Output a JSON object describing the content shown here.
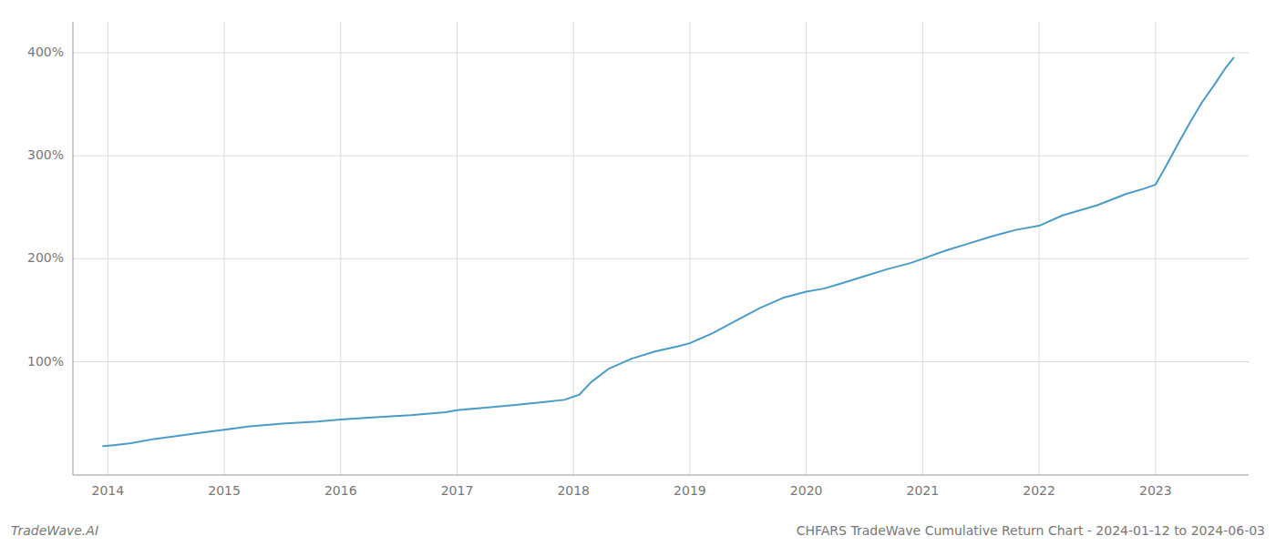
{
  "chart_data": {
    "type": "line",
    "title": "CHFARS TradeWave Cumulative Return Chart - 2024-01-12 to 2024-06-03",
    "annotations": [
      "TradeWave.AI"
    ],
    "color": "#4a9cc7",
    "x": [
      2013.96,
      2014.05,
      2014.2,
      2014.4,
      2014.6,
      2014.8,
      2015.0,
      2015.2,
      2015.5,
      2015.8,
      2016.0,
      2016.3,
      2016.6,
      2016.9,
      2017.0,
      2017.2,
      2017.5,
      2017.75,
      2017.92,
      2018.05,
      2018.15,
      2018.3,
      2018.5,
      2018.7,
      2018.9,
      2019.0,
      2019.2,
      2019.4,
      2019.6,
      2019.8,
      2020.0,
      2020.15,
      2020.3,
      2020.5,
      2020.7,
      2020.9,
      2021.0,
      2021.2,
      2021.4,
      2021.6,
      2021.8,
      2022.0,
      2022.2,
      2022.5,
      2022.75,
      2022.9,
      2023.0,
      2023.1,
      2023.2,
      2023.3,
      2023.4,
      2023.5,
      2023.6,
      2023.67
    ],
    "values": [
      18,
      19,
      21,
      25,
      28,
      31,
      34,
      37,
      40,
      42,
      44,
      46,
      48,
      51,
      53,
      55,
      58,
      61,
      63,
      68,
      80,
      93,
      103,
      110,
      115,
      118,
      128,
      140,
      152,
      162,
      168,
      171,
      176,
      183,
      190,
      196,
      200,
      208,
      215,
      222,
      228,
      232,
      242,
      252,
      263,
      268,
      272,
      292,
      313,
      333,
      352,
      368,
      385,
      395
    ],
    "xlim": [
      2013.7,
      2023.8
    ],
    "ylim": [
      -10,
      430
    ],
    "xticks": [
      2014,
      2015,
      2016,
      2017,
      2018,
      2019,
      2020,
      2021,
      2022,
      2023
    ],
    "yticks": [
      {
        "value": 100,
        "label": "100%"
      },
      {
        "value": 200,
        "label": "200%"
      },
      {
        "value": 300,
        "label": "300%"
      },
      {
        "value": 400,
        "label": "400%"
      }
    ],
    "grid": true
  }
}
